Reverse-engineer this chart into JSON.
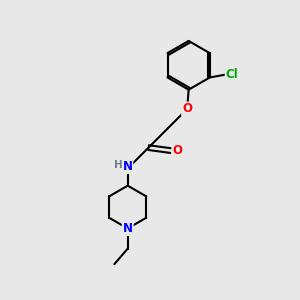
{
  "background_color": "#e8e8e8",
  "bond_color": "#000000",
  "atom_colors": {
    "O": "#ff0000",
    "N": "#0000ff",
    "Cl": "#00aa00",
    "H": "#708090",
    "C": "#000000"
  },
  "figsize": [
    3.0,
    3.0
  ],
  "dpi": 100
}
